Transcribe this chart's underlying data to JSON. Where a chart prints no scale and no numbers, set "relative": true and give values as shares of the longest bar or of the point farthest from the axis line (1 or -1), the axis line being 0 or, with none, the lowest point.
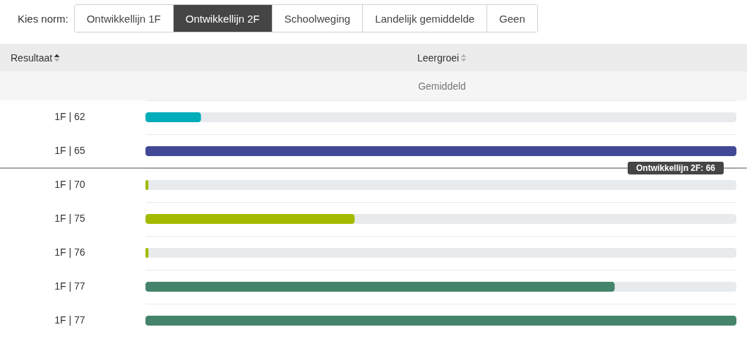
{
  "chart_data": {
    "type": "bar",
    "orientation": "horizontal",
    "relative": true,
    "title": "Leergroei",
    "subtitle": "Gemiddeld",
    "ylabel": "Resultaat",
    "categories": [
      "1F | 62",
      "1F | 65",
      "1F | 70",
      "1F | 75",
      "1F | 76",
      "1F | 77",
      "1F | 77"
    ],
    "values": [
      0.094,
      1,
      0.005,
      0.354,
      0.005,
      0.794,
      1
    ],
    "colors": [
      "#00adb9",
      "#414996",
      "#a3ba00",
      "#a3ba00",
      "#a3ba00",
      "#43846a",
      "#43846a"
    ],
    "grid": "y",
    "ref_lines": [
      {
        "axis": "y",
        "value": "1F | 65",
        "label": "Ontwikkellijn 2F: 66",
        "color": "#555555"
      }
    ],
    "annotations": [
      "Kies norm:",
      "Ontwikkellijn 1F",
      "Ontwikkellijn 2F",
      "Schoolweging",
      "Landelijk gemiddelde",
      "Geen"
    ]
  }
}
